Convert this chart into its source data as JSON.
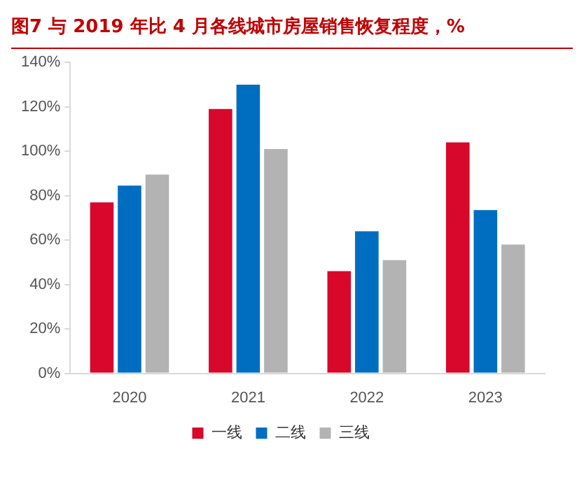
{
  "chart_data": {
    "type": "bar",
    "title": "图7 与 2019 年比 4 月各线城市房屋销售恢复程度，%",
    "categories": [
      "2020",
      "2021",
      "2022",
      "2023"
    ],
    "series": [
      {
        "name": "一线",
        "color": "#d7082a",
        "values": [
          77,
          119,
          46,
          104
        ]
      },
      {
        "name": "二线",
        "color": "#006ec0",
        "values": [
          84.5,
          130,
          64,
          73.5
        ]
      },
      {
        "name": "三线",
        "color": "#b3b3b3",
        "values": [
          89.5,
          101,
          51,
          58
        ]
      }
    ],
    "ylim": [
      0,
      140
    ],
    "yticks": [
      {
        "value": 0,
        "label": "0%"
      },
      {
        "value": 20,
        "label": "20%"
      },
      {
        "value": 40,
        "label": "40%"
      },
      {
        "value": 60,
        "label": "60%"
      },
      {
        "value": 80,
        "label": "80%"
      },
      {
        "value": 100,
        "label": "100%"
      },
      {
        "value": 120,
        "label": "120%"
      },
      {
        "value": 140,
        "label": "140%"
      }
    ],
    "grid": false,
    "legend": "bottom"
  }
}
